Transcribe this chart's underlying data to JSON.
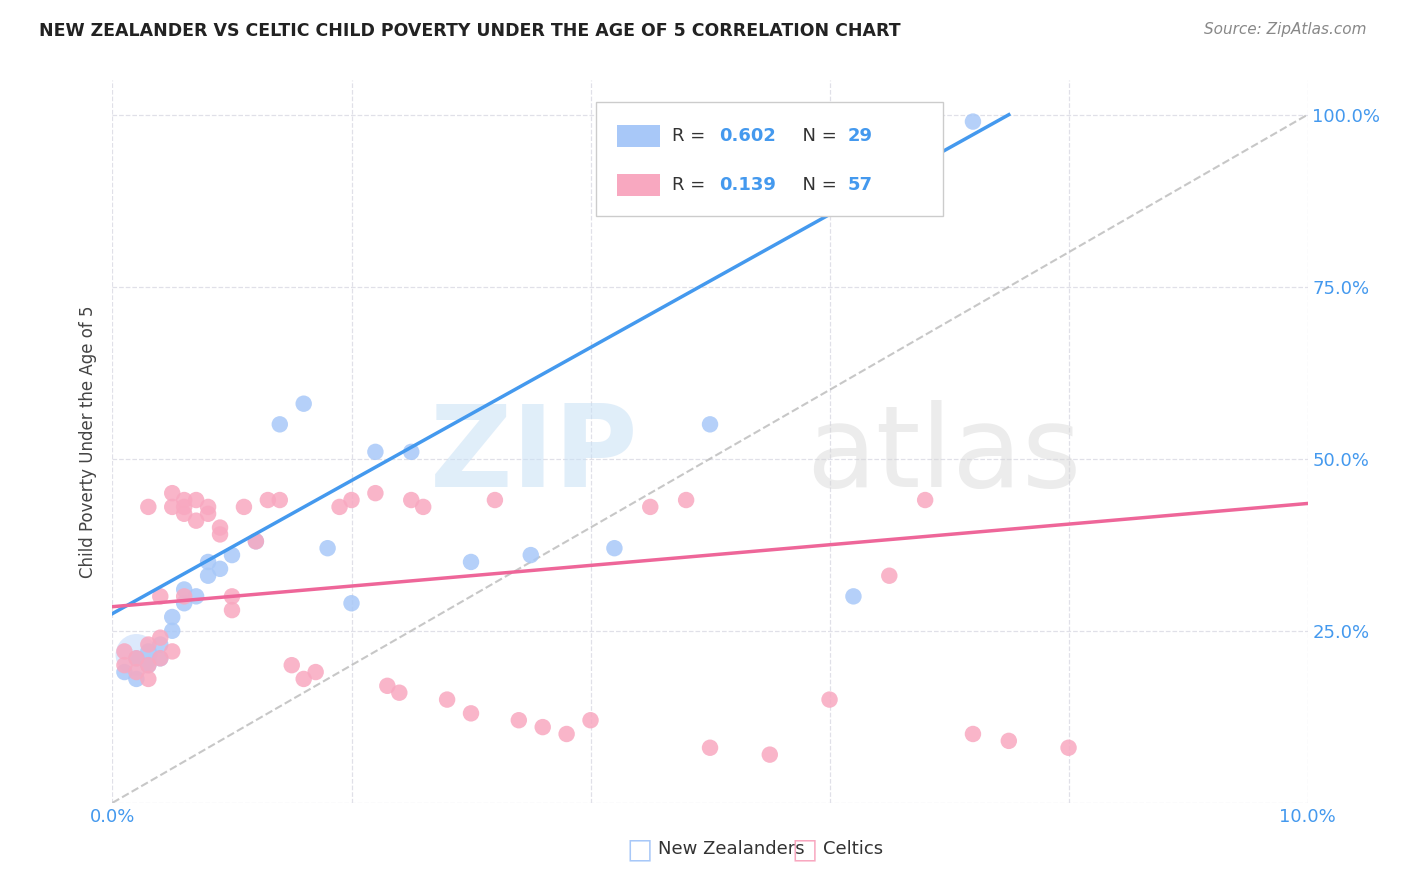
{
  "title": "NEW ZEALANDER VS CELTIC CHILD POVERTY UNDER THE AGE OF 5 CORRELATION CHART",
  "source": "Source: ZipAtlas.com",
  "ylabel": "Child Poverty Under the Age of 5",
  "xlim": [
    0.0,
    0.1
  ],
  "ylim": [
    0.0,
    1.05
  ],
  "r1": 0.602,
  "n1": 29,
  "r2": 0.139,
  "n2": 57,
  "nz_color": "#a8c8f8",
  "celtic_color": "#f8a8c0",
  "nz_line_color": "#4499ee",
  "celtic_line_color": "#ee6699",
  "label_color": "#4499ee",
  "background_color": "#ffffff",
  "grid_color": "#e0e0e8",
  "nz_line_x0": 0.0,
  "nz_line_y0": 0.275,
  "nz_line_x1": 0.075,
  "nz_line_y1": 1.0,
  "celtic_line_x0": 0.0,
  "celtic_line_y0": 0.285,
  "celtic_line_x1": 0.1,
  "celtic_line_y1": 0.435,
  "nz_x": [
    0.001,
    0.002,
    0.002,
    0.003,
    0.003,
    0.004,
    0.004,
    0.005,
    0.005,
    0.006,
    0.006,
    0.007,
    0.008,
    0.008,
    0.009,
    0.01,
    0.012,
    0.014,
    0.016,
    0.018,
    0.022,
    0.025,
    0.03,
    0.035,
    0.042,
    0.05,
    0.062,
    0.072,
    0.02
  ],
  "nz_y": [
    0.19,
    0.21,
    0.18,
    0.22,
    0.2,
    0.23,
    0.21,
    0.25,
    0.27,
    0.29,
    0.31,
    0.3,
    0.33,
    0.35,
    0.34,
    0.36,
    0.38,
    0.55,
    0.58,
    0.37,
    0.51,
    0.51,
    0.35,
    0.36,
    0.37,
    0.55,
    0.3,
    0.99,
    0.29
  ],
  "nz_big_x": [
    0.002
  ],
  "nz_big_y": [
    0.215
  ],
  "celtic_x": [
    0.001,
    0.001,
    0.002,
    0.002,
    0.003,
    0.003,
    0.003,
    0.004,
    0.004,
    0.005,
    0.005,
    0.005,
    0.006,
    0.006,
    0.006,
    0.007,
    0.007,
    0.008,
    0.008,
    0.009,
    0.009,
    0.01,
    0.011,
    0.012,
    0.013,
    0.014,
    0.015,
    0.016,
    0.017,
    0.019,
    0.02,
    0.022,
    0.023,
    0.024,
    0.025,
    0.026,
    0.028,
    0.03,
    0.032,
    0.034,
    0.036,
    0.038,
    0.04,
    0.045,
    0.048,
    0.05,
    0.055,
    0.06,
    0.065,
    0.068,
    0.072,
    0.075,
    0.08,
    0.003,
    0.004,
    0.006,
    0.01
  ],
  "celtic_y": [
    0.22,
    0.2,
    0.19,
    0.21,
    0.43,
    0.2,
    0.18,
    0.24,
    0.21,
    0.43,
    0.45,
    0.22,
    0.42,
    0.44,
    0.43,
    0.41,
    0.44,
    0.42,
    0.43,
    0.4,
    0.39,
    0.28,
    0.43,
    0.38,
    0.44,
    0.44,
    0.2,
    0.18,
    0.19,
    0.43,
    0.44,
    0.45,
    0.17,
    0.16,
    0.44,
    0.43,
    0.15,
    0.13,
    0.44,
    0.12,
    0.11,
    0.1,
    0.12,
    0.43,
    0.44,
    0.08,
    0.07,
    0.15,
    0.33,
    0.44,
    0.1,
    0.09,
    0.08,
    0.23,
    0.3,
    0.3,
    0.3
  ]
}
